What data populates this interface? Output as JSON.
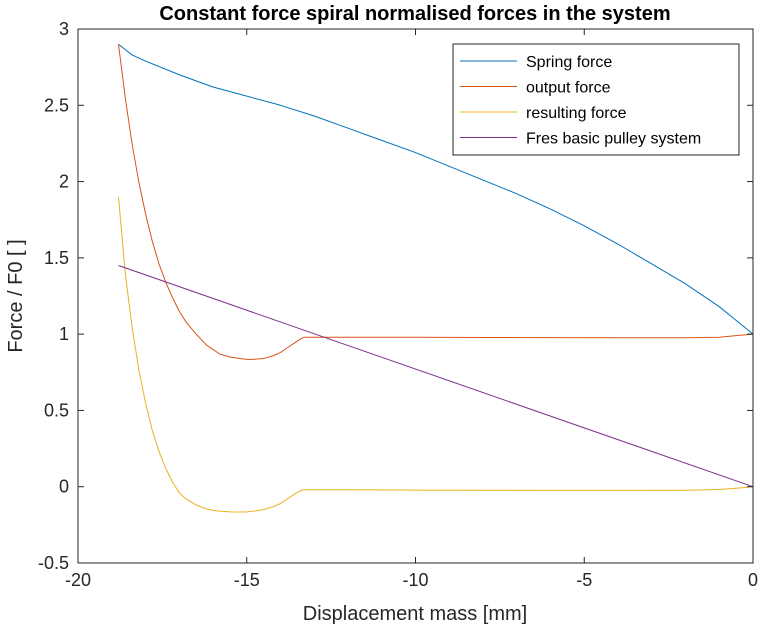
{
  "chart_data": {
    "type": "line",
    "title": "Constant force spiral normalised forces in the system",
    "xlabel": "Displacement mass [mm]",
    "ylabel": "Force / F0 [ ]",
    "xlim": [
      -20,
      0
    ],
    "ylim": [
      -0.5,
      3
    ],
    "xticks": [
      -20,
      -15,
      -10,
      -5,
      0
    ],
    "xtick_labels": [
      "-20",
      "-15",
      "-10",
      "-5",
      "0"
    ],
    "yticks": [
      -0.5,
      0,
      0.5,
      1,
      1.5,
      2,
      2.5,
      3
    ],
    "ytick_labels": [
      "-0.5",
      "0",
      "0.5",
      "1",
      "1.5",
      "2",
      "2.5",
      "3"
    ],
    "grid": false,
    "legend_position": "top-right",
    "series": [
      {
        "name": "Spring force",
        "color": "#0072BD",
        "x": [
          -18.8,
          -18.4,
          -18,
          -17,
          -16,
          -15,
          -14,
          -13,
          -12,
          -11,
          -10,
          -9,
          -8,
          -7,
          -6,
          -5,
          -4,
          -3,
          -2,
          -1,
          -0.5,
          0
        ],
        "y": [
          2.9,
          2.83,
          2.79,
          2.7,
          2.62,
          2.56,
          2.5,
          2.43,
          2.35,
          2.27,
          2.19,
          2.1,
          2.01,
          1.92,
          1.82,
          1.71,
          1.59,
          1.46,
          1.33,
          1.18,
          1.09,
          1.0
        ]
      },
      {
        "name": "output force",
        "color": "#D95319",
        "x": [
          -18.8,
          -18.6,
          -18.4,
          -18.2,
          -18,
          -17.8,
          -17.6,
          -17.4,
          -17.2,
          -17,
          -16.8,
          -16.5,
          -16.2,
          -16,
          -15.8,
          -15.5,
          -15.2,
          -15,
          -14.8,
          -14.5,
          -14.2,
          -14,
          -13.8,
          -13.6,
          -13.4,
          -13.3,
          -12,
          -10,
          -8,
          -6,
          -4,
          -2,
          -1,
          -0.5,
          0
        ],
        "y": [
          2.9,
          2.55,
          2.25,
          2.0,
          1.79,
          1.61,
          1.46,
          1.34,
          1.24,
          1.15,
          1.08,
          1.0,
          0.93,
          0.9,
          0.87,
          0.85,
          0.84,
          0.835,
          0.835,
          0.84,
          0.86,
          0.88,
          0.91,
          0.94,
          0.97,
          0.98,
          0.98,
          0.98,
          0.978,
          0.977,
          0.976,
          0.976,
          0.98,
          0.99,
          1.0
        ]
      },
      {
        "name": "resulting force",
        "color": "#EDB120",
        "x": [
          -18.8,
          -18.6,
          -18.4,
          -18.2,
          -18,
          -17.8,
          -17.6,
          -17.4,
          -17.2,
          -17,
          -16.8,
          -16.5,
          -16.2,
          -16,
          -15.8,
          -15.5,
          -15.2,
          -15,
          -14.8,
          -14.5,
          -14.2,
          -14,
          -13.8,
          -13.6,
          -13.4,
          -13.3,
          -12,
          -10,
          -8,
          -6,
          -4,
          -2,
          -1,
          -0.5,
          0
        ],
        "y": [
          1.9,
          1.4,
          1.05,
          0.77,
          0.55,
          0.37,
          0.23,
          0.12,
          0.03,
          -0.04,
          -0.08,
          -0.12,
          -0.145,
          -0.155,
          -0.16,
          -0.165,
          -0.166,
          -0.165,
          -0.16,
          -0.15,
          -0.13,
          -0.11,
          -0.08,
          -0.05,
          -0.025,
          -0.02,
          -0.02,
          -0.022,
          -0.023,
          -0.024,
          -0.024,
          -0.023,
          -0.018,
          -0.01,
          0.0
        ]
      },
      {
        "name": "Fres basic pulley system",
        "color": "#7E2F8E",
        "x": [
          -18.8,
          0
        ],
        "y": [
          1.45,
          0.0
        ]
      }
    ]
  }
}
